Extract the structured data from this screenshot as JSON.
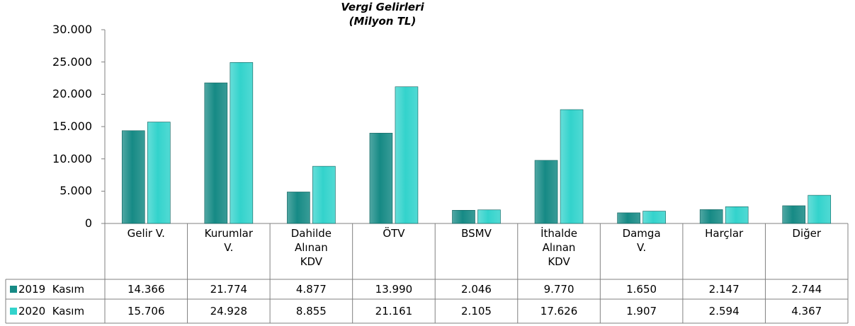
{
  "chart_data": {
    "type": "bar",
    "title": "Vergi Gelirleri\n(Milyon TL)",
    "categories": [
      "Gelir V.",
      "Kurumlar\nV.",
      "Dahilde\nAlınan\nKDV",
      "ÖTV",
      "BSMV",
      "İthalde\nAlınan\nKDV",
      "Damga\nV.",
      "Harçlar",
      "Diğer"
    ],
    "series": [
      {
        "name": "2019  Kasım",
        "color": "#168a85",
        "values": [
          14366,
          21774,
          4877,
          13990,
          2046,
          9770,
          1650,
          2147,
          2744
        ],
        "value_labels": [
          "14.366",
          "21.774",
          "4.877",
          "13.990",
          "2.046",
          "9.770",
          "1.650",
          "2.147",
          "2.744"
        ]
      },
      {
        "name": "2020  Kasım",
        "color": "#33d3cc",
        "values": [
          15706,
          24928,
          8855,
          21161,
          2105,
          17626,
          1907,
          2594,
          4367
        ],
        "value_labels": [
          "15.706",
          "24.928",
          "8.855",
          "21.161",
          "2.105",
          "17.626",
          "1.907",
          "2.594",
          "4.367"
        ]
      }
    ],
    "ylim": [
      0,
      30000
    ],
    "yticks": [
      0,
      {
        "value": 5000,
        "label": "5.000"
      },
      {
        "value": 10000,
        "label": "10.000"
      },
      {
        "value": 15000,
        "label": "15.000"
      },
      {
        "value": 20000,
        "label": "20.000"
      },
      {
        "value": 25000,
        "label": "25.000"
      },
      {
        "value": 30000,
        "label": "30.000"
      }
    ],
    "grid": false
  }
}
